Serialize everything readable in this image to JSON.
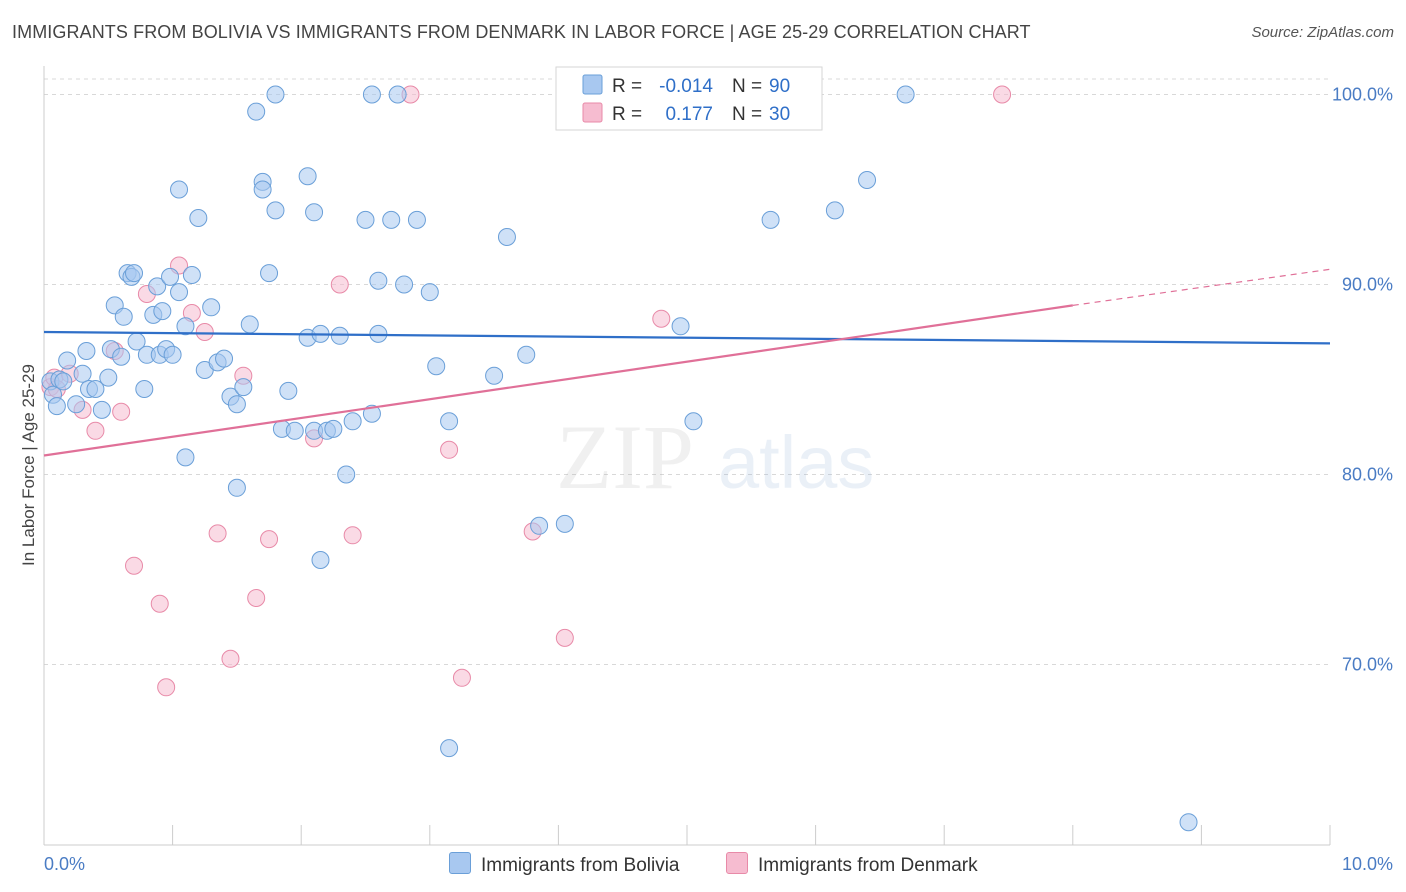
{
  "title": "IMMIGRANTS FROM BOLIVIA VS IMMIGRANTS FROM DENMARK IN LABOR FORCE | AGE 25-29 CORRELATION CHART",
  "source": "Source: ZipAtlas.com",
  "watermark": {
    "zip": "ZIP",
    "atlas": "atlas"
  },
  "colors": {
    "bolivia_fill": "#a8c8f0",
    "bolivia_stroke": "#6a9fd8",
    "bolivia_line": "#2f6fc8",
    "denmark_fill": "#f6bcd0",
    "denmark_stroke": "#e88aa8",
    "denmark_line": "#e07098",
    "axis_text": "#4a7cc4",
    "grid": "#d8d8d8"
  },
  "legend_box": {
    "rows": [
      {
        "r_label": "R =",
        "r_value": "-0.014",
        "n_label": "N =",
        "n_value": "90"
      },
      {
        "r_label": "R =",
        "r_value": "0.177",
        "n_label": "N =",
        "n_value": "30"
      }
    ]
  },
  "legend_bottom": [
    "Immigrants from Bolivia",
    "Immigrants from Denmark"
  ],
  "chart_data": {
    "type": "scatter",
    "title": "IMMIGRANTS FROM BOLIVIA VS IMMIGRANTS FROM DENMARK IN LABOR FORCE | AGE 25-29 CORRELATION CHART",
    "xlabel": "",
    "ylabel": "In Labor Force | Age 25-29",
    "xlim": [
      0,
      10
    ],
    "ylim": [
      60.5,
      101.5
    ],
    "x_tick_labels": [
      "0.0%",
      "10.0%"
    ],
    "y_ticks": [
      70,
      80,
      90,
      100
    ],
    "y_tick_labels": [
      "70.0%",
      "80.0%",
      "90.0%",
      "100.0%"
    ],
    "grid": "horizontal dashed",
    "legend_position": "top-center",
    "series": [
      {
        "name": "Immigrants from Bolivia",
        "r": -0.014,
        "n": 90,
        "trend": {
          "x": [
            0,
            10
          ],
          "y": [
            87.5,
            86.9
          ]
        },
        "points": [
          [
            0.05,
            84.9
          ],
          [
            0.07,
            84.2
          ],
          [
            0.1,
            83.6
          ],
          [
            0.12,
            85.0
          ],
          [
            0.15,
            84.9
          ],
          [
            0.18,
            86.0
          ],
          [
            0.25,
            83.7
          ],
          [
            0.3,
            85.3
          ],
          [
            0.33,
            86.5
          ],
          [
            0.35,
            84.5
          ],
          [
            0.4,
            84.5
          ],
          [
            0.45,
            83.4
          ],
          [
            0.5,
            85.1
          ],
          [
            0.52,
            86.6
          ],
          [
            0.55,
            88.9
          ],
          [
            0.6,
            86.2
          ],
          [
            0.62,
            88.3
          ],
          [
            0.65,
            90.6
          ],
          [
            0.68,
            90.4
          ],
          [
            0.7,
            90.6
          ],
          [
            0.72,
            87.0
          ],
          [
            0.78,
            84.5
          ],
          [
            0.8,
            86.3
          ],
          [
            0.85,
            88.4
          ],
          [
            0.88,
            89.9
          ],
          [
            0.9,
            86.3
          ],
          [
            0.92,
            88.6
          ],
          [
            0.95,
            86.6
          ],
          [
            0.98,
            90.4
          ],
          [
            1.0,
            86.3
          ],
          [
            1.05,
            89.6
          ],
          [
            1.1,
            87.8
          ],
          [
            1.15,
            90.5
          ],
          [
            1.2,
            93.5
          ],
          [
            1.25,
            85.5
          ],
          [
            1.3,
            88.8
          ],
          [
            1.35,
            85.9
          ],
          [
            1.4,
            86.1
          ],
          [
            1.45,
            84.1
          ],
          [
            1.5,
            83.7
          ],
          [
            1.55,
            84.6
          ],
          [
            1.6,
            87.9
          ],
          [
            1.7,
            95.4
          ],
          [
            1.75,
            90.6
          ],
          [
            1.8,
            93.9
          ],
          [
            1.85,
            82.4
          ],
          [
            1.9,
            84.4
          ],
          [
            1.95,
            82.3
          ],
          [
            2.05,
            87.2
          ],
          [
            2.1,
            82.3
          ],
          [
            2.15,
            87.4
          ],
          [
            2.2,
            82.3
          ],
          [
            2.25,
            82.4
          ],
          [
            2.3,
            87.3
          ],
          [
            2.35,
            80.0
          ],
          [
            2.4,
            82.8
          ],
          [
            2.5,
            93.4
          ],
          [
            2.55,
            83.2
          ],
          [
            2.6,
            90.2
          ],
          [
            2.7,
            93.4
          ],
          [
            2.8,
            90.0
          ],
          [
            2.9,
            93.4
          ],
          [
            3.0,
            89.6
          ],
          [
            3.05,
            85.7
          ],
          [
            3.15,
            82.8
          ],
          [
            3.5,
            85.2
          ],
          [
            3.6,
            92.5
          ],
          [
            3.75,
            86.3
          ],
          [
            3.85,
            77.3
          ],
          [
            4.05,
            77.4
          ],
          [
            4.95,
            87.8
          ],
          [
            5.05,
            82.8
          ],
          [
            5.65,
            93.4
          ],
          [
            6.15,
            93.9
          ],
          [
            6.4,
            95.5
          ],
          [
            1.05,
            95.0
          ],
          [
            1.7,
            95.0
          ],
          [
            1.65,
            99.1
          ],
          [
            2.05,
            95.7
          ],
          [
            1.8,
            100.0
          ],
          [
            2.55,
            100.0
          ],
          [
            2.75,
            100.0
          ],
          [
            2.1,
            93.8
          ],
          [
            1.1,
            80.9
          ],
          [
            1.5,
            79.3
          ],
          [
            2.15,
            75.5
          ],
          [
            2.6,
            87.4
          ],
          [
            3.15,
            65.6
          ],
          [
            6.7,
            100.0
          ],
          [
            8.9,
            61.7
          ]
        ]
      },
      {
        "name": "Immigrants from Denmark",
        "r": 0.177,
        "n": 30,
        "trend": {
          "x": [
            0,
            8.0
          ],
          "y": [
            81.0,
            88.9
          ]
        },
        "trend_dashed": {
          "x": [
            8.0,
            10
          ],
          "y": [
            88.9,
            90.8
          ]
        },
        "points": [
          [
            0.05,
            84.6
          ],
          [
            0.08,
            85.1
          ],
          [
            0.1,
            84.5
          ],
          [
            0.2,
            85.3
          ],
          [
            0.3,
            83.4
          ],
          [
            0.4,
            82.3
          ],
          [
            0.55,
            86.5
          ],
          [
            0.6,
            83.3
          ],
          [
            0.7,
            75.2
          ],
          [
            0.8,
            89.5
          ],
          [
            0.9,
            73.2
          ],
          [
            0.95,
            68.8
          ],
          [
            1.05,
            91.0
          ],
          [
            1.15,
            88.5
          ],
          [
            1.25,
            87.5
          ],
          [
            1.35,
            76.9
          ],
          [
            1.45,
            70.3
          ],
          [
            1.55,
            85.2
          ],
          [
            1.65,
            73.5
          ],
          [
            1.75,
            76.6
          ],
          [
            2.1,
            81.9
          ],
          [
            2.3,
            90.0
          ],
          [
            2.4,
            76.8
          ],
          [
            2.85,
            100.0
          ],
          [
            3.15,
            81.3
          ],
          [
            3.25,
            69.3
          ],
          [
            3.8,
            77.0
          ],
          [
            4.05,
            71.4
          ],
          [
            4.8,
            88.2
          ],
          [
            7.45,
            100.0
          ]
        ]
      }
    ]
  }
}
